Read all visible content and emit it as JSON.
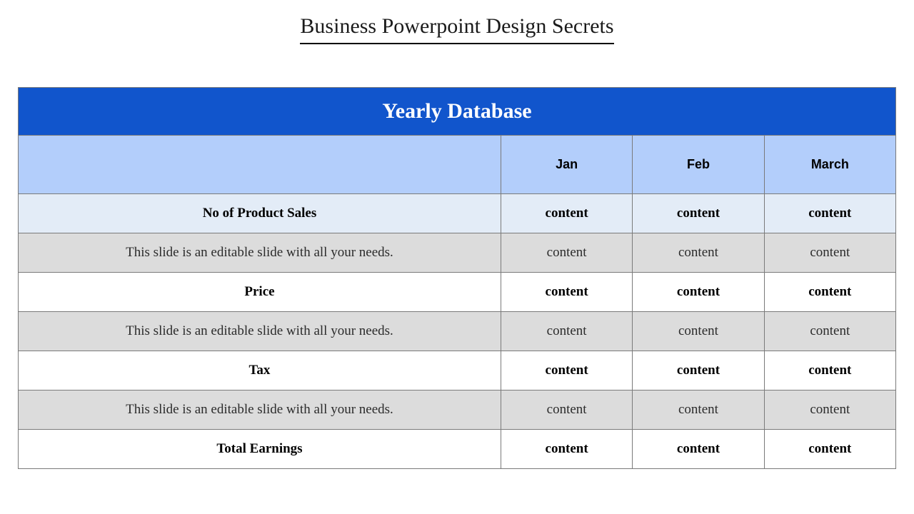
{
  "slide": {
    "title": "Business Powerpoint Design Secrets",
    "table": {
      "banner": "Yearly Database",
      "columns": [
        "",
        "Jan",
        "Feb",
        "March"
      ],
      "rows": [
        {
          "label": "No of Product Sales",
          "cells": [
            "content",
            "content",
            "content"
          ],
          "style": "light",
          "bold": true
        },
        {
          "label": "This slide is an editable slide with all your needs.",
          "cells": [
            "content",
            "content",
            "content"
          ],
          "style": "gray",
          "bold": false
        },
        {
          "label": "Price",
          "cells": [
            "content",
            "content",
            "content"
          ],
          "style": "white",
          "bold": true
        },
        {
          "label": "This slide is an editable slide with all your needs.",
          "cells": [
            "content",
            "content",
            "content"
          ],
          "style": "gray",
          "bold": false
        },
        {
          "label": "Tax",
          "cells": [
            "content",
            "content",
            "content"
          ],
          "style": "white",
          "bold": true
        },
        {
          "label": "This slide is an editable slide with all your needs.",
          "cells": [
            "content",
            "content",
            "content"
          ],
          "style": "gray",
          "bold": false
        },
        {
          "label": "Total Earnings",
          "cells": [
            "content",
            "content",
            "content"
          ],
          "style": "white",
          "bold": true
        }
      ]
    },
    "colors": {
      "banner_bg": "#1155cc",
      "banner_text": "#ffffff",
      "header_bg": "#b3cefb",
      "row_light": "#e3ecf7",
      "row_gray": "#dcdcdc",
      "row_white": "#ffffff",
      "border": "#7a7a7a",
      "title_underline": "#000000"
    },
    "fonts": {
      "title_size_pt": 30,
      "banner_size_pt": 30,
      "header_size_pt": 18,
      "body_size_pt": 19
    }
  }
}
